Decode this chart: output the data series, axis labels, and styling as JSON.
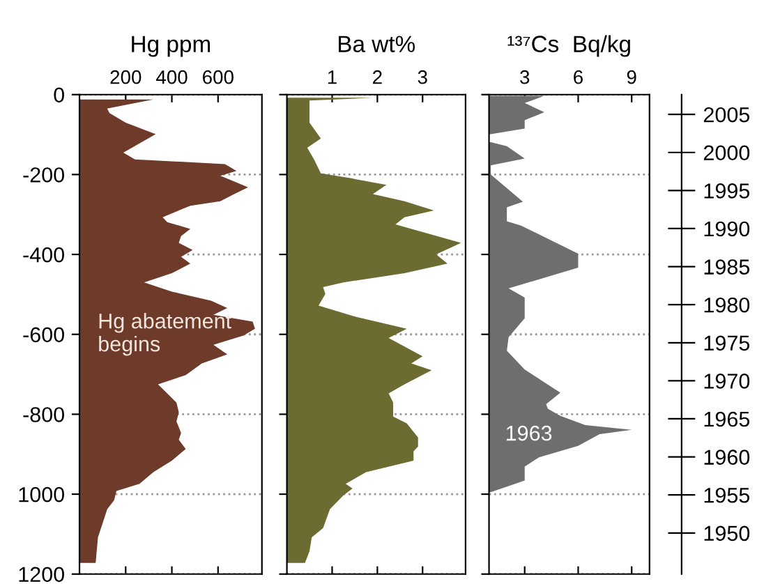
{
  "chart_data": [
    {
      "type": "area",
      "orientation": "horizontal",
      "title": "Hg ppm",
      "color": "#6e3b2b",
      "xlim": [
        0,
        790
      ],
      "xticks": [
        200,
        400,
        600
      ],
      "ylim": [
        -1200,
        0
      ],
      "yticks": [
        0,
        -200,
        -400,
        -600,
        -800,
        {
          "value": -1000,
          "label": "1000"
        },
        {
          "value": -1200,
          "label": "1200"
        }
      ],
      "grid": "y",
      "annotations": [
        "Hg abatement\nbegins"
      ],
      "x": [
        -12,
        -35,
        -46,
        -70,
        -99,
        -122,
        -145,
        -162,
        -174,
        -191,
        -203,
        -232,
        -249,
        -267,
        -278,
        -307,
        -319,
        -336,
        -354,
        -371,
        -389,
        -406,
        -423,
        -447,
        -470,
        -493,
        -516,
        -534,
        -551,
        -568,
        -586,
        -603,
        -626,
        -650,
        -673,
        -702,
        -725,
        -742,
        -771,
        -795,
        -818,
        -847,
        -864,
        -887,
        -916,
        -945,
        -974,
        -992,
        -1015,
        -1038,
        -1073,
        -1108,
        -1172
      ],
      "values": [
        320,
        120,
        130,
        200,
        330,
        260,
        190,
        240,
        630,
        680,
        610,
        730,
        670,
        610,
        480,
        360,
        380,
        480,
        440,
        430,
        490,
        440,
        480,
        400,
        280,
        400,
        570,
        640,
        580,
        750,
        760,
        710,
        580,
        640,
        530,
        460,
        340,
        370,
        420,
        430,
        420,
        440,
        430,
        460,
        400,
        320,
        260,
        160,
        150,
        120,
        100,
        80,
        70
      ]
    },
    {
      "type": "area",
      "orientation": "horizontal",
      "title": "Ba wt%",
      "color": "#6b6b32",
      "xlim": [
        0,
        3.95
      ],
      "xticks": [
        1,
        2,
        3
      ],
      "ylim": [
        -1200,
        0
      ],
      "yticks": [
        0,
        -200,
        -400,
        -600,
        -800,
        -1000,
        -1200
      ],
      "tick_labels": "x",
      "grid": "y",
      "x": [
        -8,
        -15,
        -41,
        -70,
        -110,
        -133,
        -162,
        -197,
        -209,
        -226,
        -249,
        -267,
        -290,
        -307,
        -325,
        -371,
        -400,
        -423,
        -447,
        -470,
        -482,
        -499,
        -528,
        -557,
        -586,
        -609,
        -655,
        -673,
        -690,
        -725,
        -748,
        -771,
        -806,
        -823,
        -858,
        -881,
        -893,
        -916,
        -945,
        -974,
        -986,
        -1003,
        -1038,
        -1085,
        -1108,
        -1143,
        -1172
      ],
      "values": [
        1.9,
        0.5,
        0.5,
        0.5,
        0.75,
        0.45,
        0.6,
        0.75,
        1.4,
        2.2,
        1.9,
        2.6,
        3.25,
        2.6,
        2.4,
        3.85,
        3.3,
        3.55,
        2.6,
        1.25,
        0.8,
        0.85,
        0.7,
        1.55,
        2.65,
        2.25,
        3.0,
        2.75,
        3.2,
        2.6,
        2.25,
        2.35,
        2.35,
        2.65,
        2.9,
        2.9,
        2.8,
        2.8,
        1.75,
        1.3,
        1.45,
        1.25,
        0.95,
        0.8,
        0.55,
        0.5,
        0.4
      ]
    },
    {
      "type": "area",
      "orientation": "horizontal",
      "title": "¹³⁷Cs  Bq/kg",
      "color": "#6e6e6e",
      "xlim": [
        1,
        10
      ],
      "xticks": [
        3,
        6,
        9
      ],
      "ylim": [
        -1200,
        0
      ],
      "yticks": [
        0,
        -200,
        -400,
        -600,
        -800,
        -1000,
        -1200
      ],
      "tick_labels": "x",
      "grid": "y",
      "annotations": [
        "1963"
      ],
      "y2lim": [
        1944.6,
        2007.6
      ],
      "y2ticks": [
        {
          "value": 2005,
          "label": "2005"
        },
        {
          "value": 2000,
          "label": "2000"
        },
        {
          "value": 1995,
          "label": "1995"
        },
        {
          "value": 1990,
          "label": "1990"
        },
        {
          "value": 1985,
          "label": "1985"
        },
        {
          "value": 1980,
          "label": "1980"
        },
        {
          "value": 1975,
          "label": "1975"
        },
        {
          "value": 1970,
          "label": "1970"
        },
        {
          "value": 1965,
          "label": "1965"
        },
        {
          "value": 1960,
          "label": "1960"
        },
        {
          "value": 1955,
          "label": "1955"
        },
        {
          "value": 1950,
          "label": "1950"
        }
      ],
      "x": [
        -3,
        -21,
        -44,
        -64,
        -85,
        -99,
        -109,
        -119,
        -129,
        -160,
        -177,
        -200,
        -268,
        -282,
        -317,
        -328,
        -398,
        -433,
        -485,
        -508,
        -560,
        -607,
        -641,
        -688,
        -746,
        -775,
        -786,
        -804,
        -827,
        -839,
        -850,
        -879,
        -908,
        -931,
        -966,
        -995
      ],
      "values": [
        4.1,
        3.0,
        4.1,
        3.0,
        3.0,
        1.1,
        null,
        1.1,
        2.0,
        3.0,
        1.1,
        1.1,
        2.9,
        2.0,
        2.0,
        2.8,
        6.0,
        6.0,
        2.1,
        3.0,
        3.0,
        2.1,
        2.0,
        3.0,
        5.0,
        4.2,
        4.3,
        5.0,
        6.4,
        9.0,
        7.2,
        6.0,
        3.8,
        3.0,
        3.0,
        1.1
      ]
    }
  ]
}
